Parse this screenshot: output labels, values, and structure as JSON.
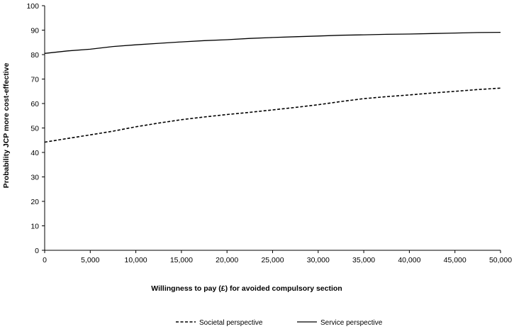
{
  "chart_data": {
    "type": "line",
    "title": "",
    "xlabel": "Willingness to pay (£) for avoided compulsory section",
    "ylabel": "Probability JCP more cost-effective",
    "xlim": [
      0,
      50000
    ],
    "ylim": [
      0,
      100
    ],
    "x_ticks": [
      0,
      5000,
      10000,
      15000,
      20000,
      25000,
      30000,
      35000,
      40000,
      45000,
      50000
    ],
    "x_tick_labels": [
      "0",
      "5,000",
      "10,000",
      "15,000",
      "20,000",
      "25,000",
      "30,000",
      "35,000",
      "40,000",
      "45,000",
      "50,000"
    ],
    "y_ticks": [
      0,
      10,
      20,
      30,
      40,
      50,
      60,
      70,
      80,
      90,
      100
    ],
    "y_tick_labels": [
      "0",
      "10",
      "20",
      "30",
      "40",
      "50",
      "60",
      "70",
      "80",
      "90",
      "100"
    ],
    "grid": false,
    "legend_position": "bottom",
    "x": [
      0,
      2500,
      5000,
      7500,
      10000,
      12500,
      15000,
      17500,
      20000,
      22500,
      25000,
      27500,
      30000,
      32500,
      35000,
      37500,
      40000,
      42500,
      45000,
      47500,
      50000
    ],
    "series": [
      {
        "name": "Societal perspective",
        "style": "dashed",
        "color": "#000000",
        "values": [
          44.2,
          45.7,
          47.2,
          48.7,
          50.5,
          52.0,
          53.4,
          54.5,
          55.5,
          56.4,
          57.4,
          58.4,
          59.5,
          60.8,
          62.0,
          62.8,
          63.5,
          64.3,
          65.0,
          65.7,
          66.3
        ]
      },
      {
        "name": "Service perspective",
        "style": "solid",
        "color": "#000000",
        "values": [
          80.5,
          81.5,
          82.2,
          83.3,
          84.0,
          84.6,
          85.2,
          85.7,
          86.1,
          86.6,
          87.0,
          87.3,
          87.6,
          87.9,
          88.1,
          88.3,
          88.4,
          88.6,
          88.8,
          89.0,
          89.1
        ]
      }
    ]
  }
}
